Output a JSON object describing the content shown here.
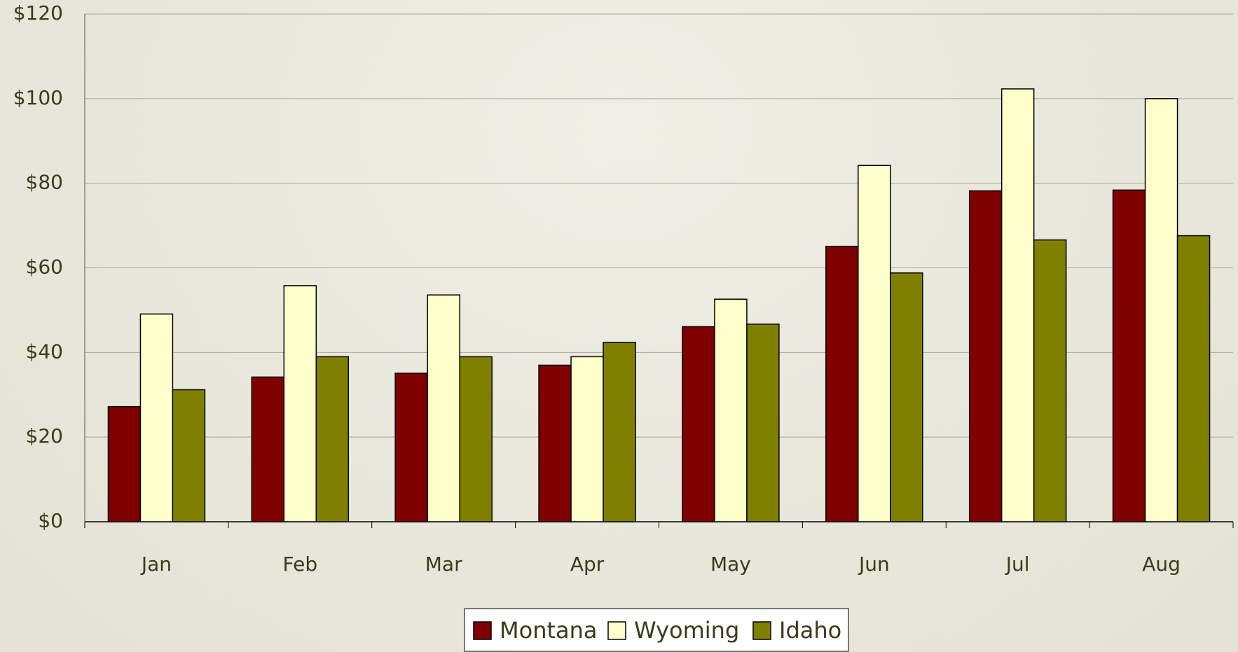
{
  "chart_data": {
    "type": "bar",
    "categories": [
      "Jan",
      "Feb",
      "Mar",
      "Apr",
      "May",
      "Jun",
      "Jul",
      "Aug"
    ],
    "series": [
      {
        "name": "Montana",
        "color": "#800000",
        "values": [
          27.2,
          34.2,
          35.1,
          37,
          46.1,
          65.1,
          78.2,
          78.4
        ]
      },
      {
        "name": "Wyoming",
        "color": "#ffffcc",
        "values": [
          49.1,
          55.8,
          53.6,
          39,
          52.6,
          84.2,
          102.3,
          100
        ]
      },
      {
        "name": "Idaho",
        "color": "#808000",
        "values": [
          31.2,
          39,
          39,
          42.4,
          46.7,
          58.8,
          66.6,
          67.6
        ]
      }
    ],
    "ylim": [
      0,
      120
    ],
    "yticks": [
      {
        "value": 0,
        "label": "$0"
      },
      {
        "value": 20,
        "label": "$20"
      },
      {
        "value": 40,
        "label": "$40"
      },
      {
        "value": 60,
        "label": "$60"
      },
      {
        "value": 80,
        "label": "$80"
      },
      {
        "value": 100,
        "label": "$100"
      },
      {
        "value": 120,
        "label": "$120"
      }
    ],
    "grid": true,
    "legend": "bottom"
  }
}
